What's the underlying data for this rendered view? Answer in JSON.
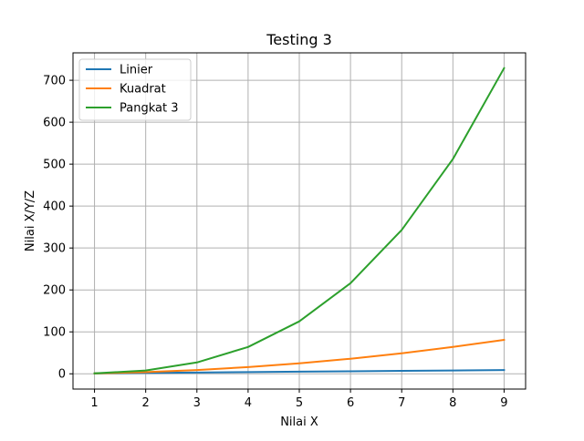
{
  "chart_data": {
    "type": "line",
    "title": "Testing 3",
    "xlabel": "Nilai X",
    "ylabel": "Nilai X/Y/Z",
    "x": [
      1,
      2,
      3,
      4,
      5,
      6,
      7,
      8,
      9
    ],
    "xticks": [
      "1",
      "2",
      "3",
      "4",
      "5",
      "6",
      "7",
      "8",
      "9"
    ],
    "yticks": [
      "0",
      "100",
      "200",
      "300",
      "400",
      "500",
      "600",
      "700"
    ],
    "ytick_values": [
      0,
      100,
      200,
      300,
      400,
      500,
      600,
      700
    ],
    "xlim": [
      0.58,
      9.42
    ],
    "ylim": [
      -36.4,
      765.4
    ],
    "grid": true,
    "legend_position": "top-left",
    "series": [
      {
        "name": "Linier",
        "color": "#1f77b4",
        "values": [
          1,
          2,
          3,
          4,
          5,
          6,
          7,
          8,
          9
        ]
      },
      {
        "name": "Kuadrat",
        "color": "#ff7f0e",
        "values": [
          1,
          4,
          9,
          16,
          25,
          36,
          49,
          64,
          81
        ]
      },
      {
        "name": "Pangkat 3",
        "color": "#2ca02c",
        "values": [
          1,
          8,
          27,
          64,
          125,
          216,
          343,
          512,
          729
        ]
      }
    ]
  }
}
